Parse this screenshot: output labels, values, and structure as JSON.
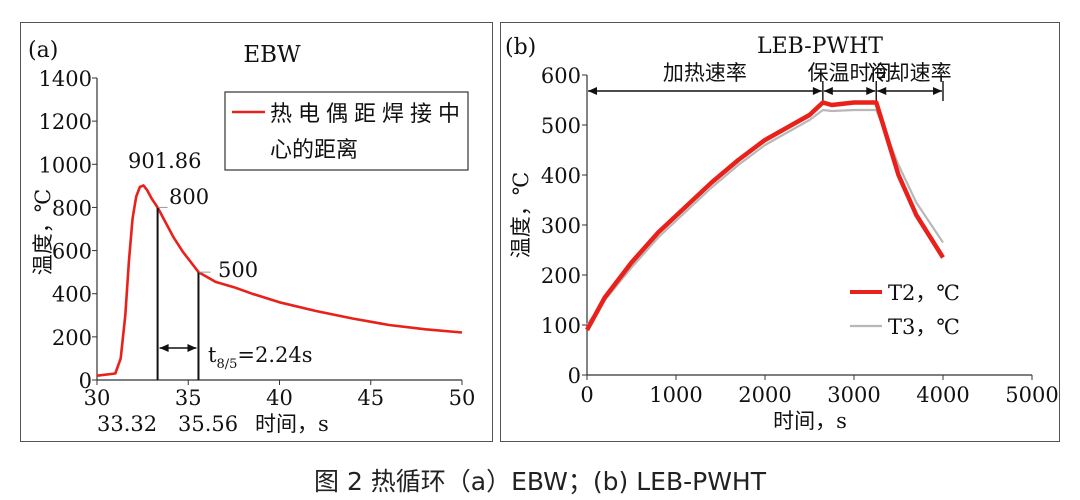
{
  "caption": "图 2 热循环（a）EBW；(b) LEB-PWHT",
  "chart_data": [
    {
      "type": "line",
      "panel_label": "(a)",
      "title": "EBW",
      "xlabel": "时间，s",
      "ylabel": "温度，℃",
      "xlim": [
        30,
        50
      ],
      "ylim": [
        0,
        1400
      ],
      "x_ticks": [
        "30",
        "35",
        "40",
        "45",
        "50"
      ],
      "y_ticks": [
        "0",
        "200",
        "400",
        "600",
        "800",
        "1000",
        "1200",
        "1400"
      ],
      "grid": false,
      "legend_position": "top-right",
      "series": [
        {
          "name": "热电偶距焊接中心的距离",
          "color": "#e8211b",
          "x": [
            30.0,
            31.0,
            31.3,
            31.55,
            31.75,
            31.95,
            32.15,
            32.35,
            32.55,
            32.75,
            33.0,
            33.32,
            33.7,
            34.2,
            34.7,
            35.2,
            35.56,
            36.5,
            37.5,
            38.5,
            40.0,
            42.0,
            44.0,
            46.0,
            48.0,
            50.0
          ],
          "y": [
            20,
            30,
            100,
            300,
            550,
            750,
            850,
            895,
            901.86,
            880,
            840,
            800,
            740,
            660,
            595,
            540,
            500,
            455,
            430,
            400,
            360,
            320,
            285,
            255,
            235,
            220
          ]
        }
      ],
      "annotations": {
        "peak_label": "901.86",
        "label_800": "800",
        "label_500": "500",
        "t85_label": "t8/5=2.24s",
        "x800_label": "33.32",
        "x500_label": "35.56",
        "x800": 33.32,
        "x500": 35.56
      }
    },
    {
      "type": "line",
      "panel_label": "(b)",
      "title": "LEB-PWHT",
      "xlabel": "时间，s",
      "ylabel": "温度，℃",
      "xlim": [
        0,
        5000
      ],
      "ylim": [
        0,
        600
      ],
      "x_ticks": [
        "0",
        "1000",
        "2000",
        "3000",
        "4000",
        "5000"
      ],
      "y_ticks": [
        "0",
        "100",
        "200",
        "300",
        "400",
        "500",
        "600"
      ],
      "grid": false,
      "legend_position": "bottom-right",
      "phases": [
        {
          "label": "加热速率",
          "start": 0,
          "end": 2650
        },
        {
          "label": "保温时间",
          "start": 2650,
          "end": 3250
        },
        {
          "label": "冷却速率",
          "start": 3250,
          "end": 4000
        }
      ],
      "series": [
        {
          "name": "T2，℃",
          "color": "#e8211b",
          "x": [
            0,
            200,
            500,
            800,
            1100,
            1400,
            1700,
            2000,
            2300,
            2500,
            2650,
            2750,
            3000,
            3250,
            3500,
            3700,
            4000
          ],
          "y": [
            90,
            155,
            225,
            285,
            335,
            385,
            430,
            470,
            500,
            520,
            545,
            540,
            545,
            545,
            400,
            320,
            235
          ]
        },
        {
          "name": "T3，℃",
          "color": "#b8b8b8",
          "x": [
            0,
            200,
            500,
            800,
            1100,
            1400,
            1700,
            2000,
            2300,
            2500,
            2650,
            2750,
            3000,
            3250,
            3500,
            3700,
            4000
          ],
          "y": [
            100,
            150,
            215,
            275,
            325,
            375,
            420,
            460,
            490,
            510,
            530,
            528,
            530,
            530,
            420,
            345,
            265
          ]
        }
      ]
    }
  ]
}
